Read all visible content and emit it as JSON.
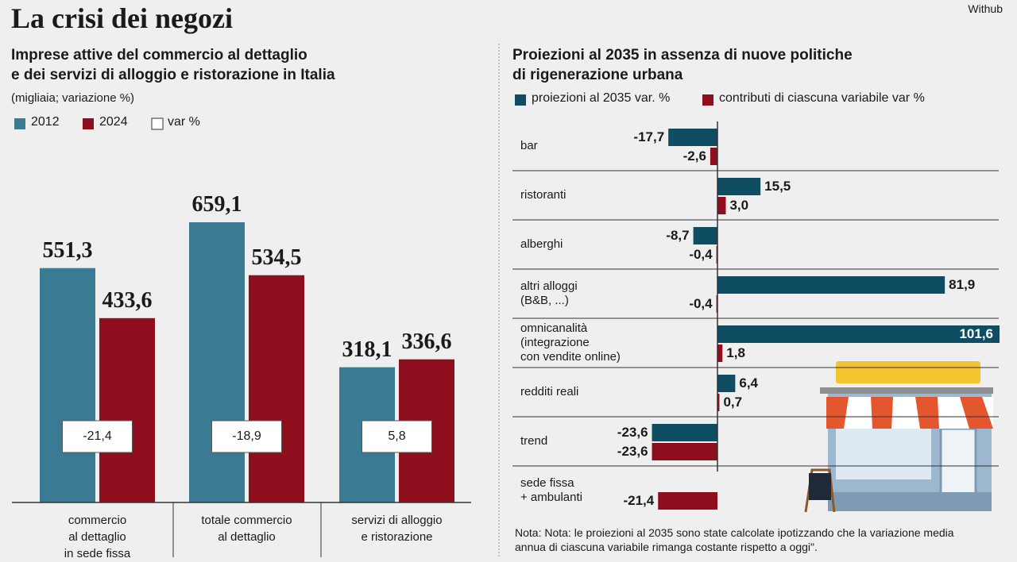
{
  "header": {
    "title": "La crisi dei negozi",
    "source": "Withub"
  },
  "chart_data": [
    {
      "type": "bar",
      "orientation": "vertical",
      "title": "Imprese attive del commercio al dettaglio\ne dei servizi di alloggio e ristorazione in Italia",
      "subtitle": "(migliaia; variazione %)",
      "categories": [
        "commercio\nal dettaglio\nin sede fissa",
        "totale commercio\nal dettaglio",
        "servizi di alloggio\ne ristorazione"
      ],
      "series": [
        {
          "name": "2012",
          "color": "#3b7a93",
          "values": [
            551.3,
            659.1,
            318.1
          ],
          "value_labels": [
            "551,3",
            "659,1",
            "318,1"
          ]
        },
        {
          "name": "2024",
          "color": "#8e0e1e",
          "values": [
            433.6,
            534.5,
            336.6
          ],
          "value_labels": [
            "433,6",
            "534,5",
            "336,6"
          ]
        }
      ],
      "var_name": "var %",
      "var_values": [
        -21.4,
        -18.9,
        5.8
      ],
      "var_value_labels": [
        "-21,4",
        "-18,9",
        "5,8"
      ]
    },
    {
      "type": "bar",
      "orientation": "horizontal",
      "title": "Proiezioni al 2035 in assenza di nuove politiche\ndi rigenerazione urbana",
      "categories": [
        "bar",
        "ristoranti",
        "alberghi",
        "altri alloggi\n(B&B, ...)",
        "omnicanalità\n(integrazione\ncon vendite online)",
        "redditi reali",
        "trend",
        "sede fissa\n+ ambulanti"
      ],
      "series": [
        {
          "name": "proiezioni al 2035 var. %",
          "color": "#0f4d63",
          "values": [
            -17.7,
            15.5,
            -8.7,
            81.9,
            101.6,
            6.4,
            -23.6,
            null
          ],
          "value_labels": [
            "-17,7",
            "15,5",
            "-8,7",
            "81,9",
            "101,6",
            "6,4",
            "-23,6",
            null
          ]
        },
        {
          "name": "contributi di ciascuna variabile var %",
          "color": "#8e0e1e",
          "values": [
            -2.6,
            3.0,
            -0.4,
            -0.4,
            1.8,
            0.7,
            -23.6,
            -21.4
          ],
          "value_labels": [
            "-2,6",
            "3,0",
            "-0,4",
            "-0,4",
            "1,8",
            "0,7",
            "-23,6",
            "-21,4"
          ]
        }
      ],
      "note": "Nota: Nota: le proiezioni al 2035 sono state calcolate ipotizzando che la variazione media annua di ciascuna variabile rimanga costante rispetto a oggi\"."
    }
  ]
}
